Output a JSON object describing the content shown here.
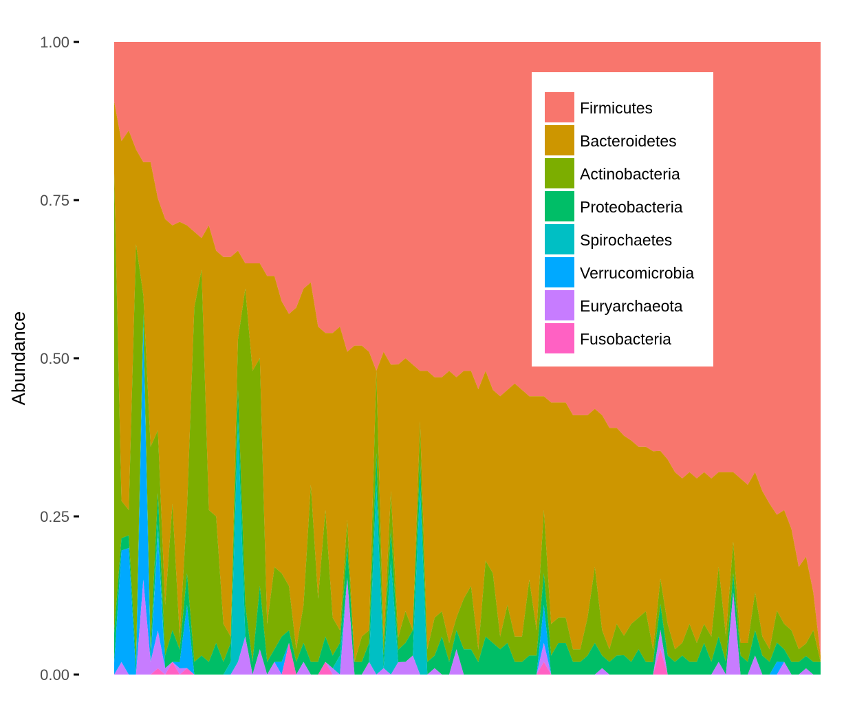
{
  "chart_data": {
    "type": "area",
    "stacked": true,
    "xlabel": "",
    "ylabel": "Abundance",
    "ylim": [
      0,
      1
    ],
    "yticks": [
      "0.00",
      "0.25",
      "0.50",
      "0.75",
      "1.00"
    ],
    "yticks_values": [
      0,
      0.25,
      0.5,
      0.75,
      1
    ],
    "xticks_visible": false,
    "grid": false,
    "background": "#ffffff",
    "legend_position": "top-right inside",
    "n_samples": 98,
    "series": [
      {
        "name": "Fusobacteria",
        "color": "#FF61C3",
        "values": [
          0.0,
          0.0,
          0.0,
          0.0,
          0.0,
          0.0,
          0.01,
          0.0,
          0.02,
          0.0,
          0.01,
          0.0,
          0.0,
          0.0,
          0.0,
          0.0,
          0.0,
          0.0,
          0.0,
          0.0,
          0.0,
          0.0,
          0.0,
          0.0,
          0.05,
          0.0,
          0.0,
          0.0,
          0.0,
          0.02,
          0.0,
          0.0,
          0.0,
          0.0,
          0.0,
          0.0,
          0.0,
          0.0,
          0.0,
          0.0,
          0.0,
          0.0,
          0.0,
          0.0,
          0.0,
          0.0,
          0.0,
          0.0,
          0.0,
          0.0,
          0.0,
          0.0,
          0.0,
          0.0,
          0.0,
          0.0,
          0.0,
          0.0,
          0.0,
          0.02,
          0.0,
          0.0,
          0.0,
          0.0,
          0.0,
          0.0,
          0.0,
          0.0,
          0.0,
          0.0,
          0.0,
          0.0,
          0.0,
          0.0,
          0.0,
          0.04,
          0.0,
          0.0,
          0.0,
          0.0,
          0.0,
          0.0,
          0.0,
          0.0,
          0.0,
          0.0,
          0.0,
          0.0,
          0.0,
          0.0,
          0.0,
          0.0,
          0.0,
          0.0,
          0.0,
          0.0,
          0.0,
          0.0
        ]
      },
      {
        "name": "Euryarchaeota",
        "color": "#C77CFF",
        "values": [
          0.0,
          0.02,
          0.0,
          0.0,
          0.15,
          0.02,
          0.06,
          0.01,
          0.0,
          0.01,
          0.0,
          0.0,
          0.0,
          0.0,
          0.0,
          0.0,
          0.0,
          0.02,
          0.06,
          0.0,
          0.04,
          0.0,
          0.02,
          0.0,
          0.0,
          0.0,
          0.02,
          0.0,
          0.0,
          0.0,
          0.01,
          0.0,
          0.15,
          0.0,
          0.0,
          0.02,
          0.0,
          0.01,
          0.0,
          0.02,
          0.02,
          0.03,
          0.0,
          0.0,
          0.01,
          0.0,
          0.0,
          0.04,
          0.0,
          0.0,
          0.0,
          0.0,
          0.0,
          0.0,
          0.0,
          0.0,
          0.0,
          0.0,
          0.0,
          0.03,
          0.0,
          0.0,
          0.0,
          0.0,
          0.0,
          0.0,
          0.0,
          0.01,
          0.0,
          0.0,
          0.0,
          0.0,
          0.0,
          0.0,
          0.0,
          0.03,
          0.0,
          0.0,
          0.0,
          0.0,
          0.0,
          0.0,
          0.0,
          0.02,
          0.0,
          0.13,
          0.0,
          0.0,
          0.03,
          0.0,
          0.0,
          0.0,
          0.02,
          0.0,
          0.0,
          0.01,
          0.0,
          0.0
        ]
      },
      {
        "name": "Verrucomicrobia",
        "color": "#00A9FF",
        "values": [
          0.02,
          0.18,
          0.2,
          0.0,
          0.4,
          0.0,
          0.15,
          0.0,
          0.0,
          0.01,
          0.1,
          0.0,
          0.0,
          0.0,
          0.0,
          0.0,
          0.0,
          0.0,
          0.0,
          0.0,
          0.0,
          0.0,
          0.0,
          0.02,
          0.0,
          0.0,
          0.0,
          0.0,
          0.0,
          0.0,
          0.0,
          0.0,
          0.0,
          0.0,
          0.0,
          0.0,
          0.0,
          0.0,
          0.0,
          0.0,
          0.0,
          0.0,
          0.0,
          0.0,
          0.0,
          0.0,
          0.0,
          0.0,
          0.0,
          0.0,
          0.0,
          0.0,
          0.0,
          0.0,
          0.0,
          0.0,
          0.0,
          0.0,
          0.0,
          0.06,
          0.0,
          0.0,
          0.0,
          0.0,
          0.0,
          0.0,
          0.0,
          0.0,
          0.0,
          0.0,
          0.0,
          0.0,
          0.0,
          0.0,
          0.0,
          0.0,
          0.0,
          0.0,
          0.0,
          0.0,
          0.0,
          0.0,
          0.0,
          0.0,
          0.0,
          0.0,
          0.0,
          0.0,
          0.0,
          0.0,
          0.0,
          0.02,
          0.0,
          0.0,
          0.0,
          0.0,
          0.0,
          0.0
        ]
      },
      {
        "name": "Spirochaetes",
        "color": "#00BFC4",
        "values": [
          0.0,
          0.0,
          0.0,
          0.0,
          0.0,
          0.0,
          0.02,
          0.0,
          0.0,
          0.0,
          0.0,
          0.0,
          0.0,
          0.0,
          0.0,
          0.0,
          0.02,
          0.38,
          0.0,
          0.0,
          0.0,
          0.0,
          0.0,
          0.0,
          0.0,
          0.0,
          0.0,
          0.0,
          0.0,
          0.0,
          0.0,
          0.03,
          0.0,
          0.0,
          0.0,
          0.0,
          0.3,
          0.0,
          0.18,
          0.0,
          0.0,
          0.0,
          0.3,
          0.0,
          0.0,
          0.0,
          0.0,
          0.0,
          0.0,
          0.0,
          0.0,
          0.0,
          0.0,
          0.0,
          0.0,
          0.0,
          0.0,
          0.0,
          0.0,
          0.0,
          0.0,
          0.0,
          0.0,
          0.0,
          0.0,
          0.0,
          0.0,
          0.0,
          0.0,
          0.0,
          0.0,
          0.0,
          0.0,
          0.0,
          0.0,
          0.0,
          0.0,
          0.0,
          0.0,
          0.0,
          0.0,
          0.0,
          0.0,
          0.0,
          0.0,
          0.0,
          0.0,
          0.0,
          0.0,
          0.0,
          0.0,
          0.0,
          0.0,
          0.0,
          0.0,
          0.0,
          0.0,
          0.0
        ]
      },
      {
        "name": "Proteobacteria",
        "color": "#00BE67",
        "values": [
          0.05,
          0.02,
          0.02,
          0.02,
          0.02,
          0.02,
          0.05,
          0.02,
          0.05,
          0.02,
          0.05,
          0.02,
          0.03,
          0.02,
          0.05,
          0.02,
          0.03,
          0.05,
          0.05,
          0.02,
          0.1,
          0.02,
          0.02,
          0.04,
          0.02,
          0.02,
          0.03,
          0.02,
          0.02,
          0.04,
          0.02,
          0.02,
          0.05,
          0.02,
          0.02,
          0.03,
          0.05,
          0.02,
          0.05,
          0.02,
          0.03,
          0.04,
          0.04,
          0.02,
          0.02,
          0.06,
          0.02,
          0.03,
          0.04,
          0.04,
          0.02,
          0.06,
          0.05,
          0.04,
          0.05,
          0.02,
          0.02,
          0.03,
          0.03,
          0.05,
          0.03,
          0.05,
          0.05,
          0.02,
          0.02,
          0.03,
          0.05,
          0.02,
          0.02,
          0.03,
          0.03,
          0.02,
          0.04,
          0.02,
          0.02,
          0.04,
          0.03,
          0.02,
          0.03,
          0.02,
          0.02,
          0.05,
          0.02,
          0.04,
          0.02,
          0.03,
          0.03,
          0.02,
          0.04,
          0.03,
          0.02,
          0.03,
          0.02,
          0.02,
          0.02,
          0.02,
          0.02,
          0.02
        ]
      },
      {
        "name": "Actinobacteria",
        "color": "#7CAE00",
        "values": [
          0.77,
          0.06,
          0.04,
          0.66,
          0.03,
          0.32,
          0.1,
          0.08,
          0.2,
          0.02,
          0.1,
          0.56,
          0.61,
          0.24,
          0.2,
          0.06,
          0.01,
          0.08,
          0.5,
          0.46,
          0.36,
          0.06,
          0.13,
          0.1,
          0.07,
          0.02,
          0.06,
          0.28,
          0.1,
          0.2,
          0.06,
          0.02,
          0.04,
          0.0,
          0.04,
          0.02,
          0.13,
          0.02,
          0.06,
          0.02,
          0.05,
          0.0,
          0.06,
          0.02,
          0.06,
          0.04,
          0.03,
          0.02,
          0.08,
          0.1,
          0.02,
          0.12,
          0.11,
          0.02,
          0.06,
          0.04,
          0.04,
          0.12,
          0.04,
          0.1,
          0.05,
          0.04,
          0.04,
          0.02,
          0.02,
          0.06,
          0.12,
          0.04,
          0.02,
          0.05,
          0.03,
          0.06,
          0.05,
          0.08,
          0.02,
          0.04,
          0.05,
          0.02,
          0.02,
          0.06,
          0.03,
          0.03,
          0.04,
          0.11,
          0.04,
          0.05,
          0.02,
          0.03,
          0.06,
          0.03,
          0.02,
          0.05,
          0.04,
          0.05,
          0.02,
          0.02,
          0.05,
          0.0
        ]
      },
      {
        "name": "Bacteroidetes",
        "color": "#CD9600",
        "values": [
          0.12,
          0.58,
          0.6,
          0.15,
          0.21,
          0.45,
          0.37,
          0.61,
          0.44,
          0.67,
          0.45,
          0.12,
          0.05,
          0.45,
          0.42,
          0.58,
          0.6,
          0.14,
          0.04,
          0.17,
          0.15,
          0.55,
          0.46,
          0.43,
          0.43,
          0.54,
          0.5,
          0.32,
          0.43,
          0.28,
          0.45,
          0.48,
          0.26,
          0.5,
          0.46,
          0.44,
          0.0,
          0.46,
          0.2,
          0.44,
          0.4,
          0.42,
          0.08,
          0.44,
          0.38,
          0.37,
          0.43,
          0.38,
          0.36,
          0.34,
          0.42,
          0.3,
          0.29,
          0.38,
          0.34,
          0.4,
          0.39,
          0.29,
          0.37,
          0.18,
          0.35,
          0.34,
          0.34,
          0.37,
          0.37,
          0.32,
          0.25,
          0.34,
          0.35,
          0.31,
          0.31,
          0.29,
          0.27,
          0.26,
          0.32,
          0.2,
          0.26,
          0.28,
          0.26,
          0.24,
          0.26,
          0.24,
          0.25,
          0.15,
          0.26,
          0.11,
          0.26,
          0.25,
          0.19,
          0.23,
          0.23,
          0.15,
          0.18,
          0.16,
          0.13,
          0.14,
          0.06,
          0.01
        ]
      },
      {
        "name": "Firmicutes",
        "color": "#F8766D",
        "values": [
          0.1,
          0.16,
          0.14,
          0.17,
          0.19,
          0.19,
          0.25,
          0.28,
          0.29,
          0.29,
          0.29,
          0.3,
          0.31,
          0.29,
          0.33,
          0.34,
          0.34,
          0.33,
          0.35,
          0.35,
          0.35,
          0.37,
          0.37,
          0.41,
          0.43,
          0.42,
          0.39,
          0.38,
          0.45,
          0.46,
          0.46,
          0.45,
          0.48,
          0.48,
          0.48,
          0.49,
          0.52,
          0.49,
          0.51,
          0.52,
          0.5,
          0.51,
          0.52,
          0.52,
          0.53,
          0.53,
          0.52,
          0.53,
          0.52,
          0.52,
          0.56,
          0.52,
          0.55,
          0.56,
          0.55,
          0.54,
          0.55,
          0.56,
          0.56,
          0.56,
          0.57,
          0.57,
          0.57,
          0.59,
          0.59,
          0.59,
          0.58,
          0.59,
          0.61,
          0.61,
          0.61,
          0.63,
          0.64,
          0.64,
          0.66,
          0.64,
          0.66,
          0.68,
          0.69,
          0.68,
          0.69,
          0.68,
          0.69,
          0.68,
          0.68,
          0.68,
          0.69,
          0.7,
          0.68,
          0.71,
          0.73,
          0.74,
          0.74,
          0.77,
          0.83,
          0.83,
          0.87,
          0.97
        ]
      }
    ],
    "legend": [
      {
        "name": "Firmicutes",
        "color": "#F8766D"
      },
      {
        "name": "Bacteroidetes",
        "color": "#CD9600"
      },
      {
        "name": "Actinobacteria",
        "color": "#7CAE00"
      },
      {
        "name": "Proteobacteria",
        "color": "#00BE67"
      },
      {
        "name": "Spirochaetes",
        "color": "#00BFC4"
      },
      {
        "name": "Verrucomicrobia",
        "color": "#00A9FF"
      },
      {
        "name": "Euryarchaeota",
        "color": "#C77CFF"
      },
      {
        "name": "Fusobacteria",
        "color": "#FF61C3"
      }
    ]
  }
}
